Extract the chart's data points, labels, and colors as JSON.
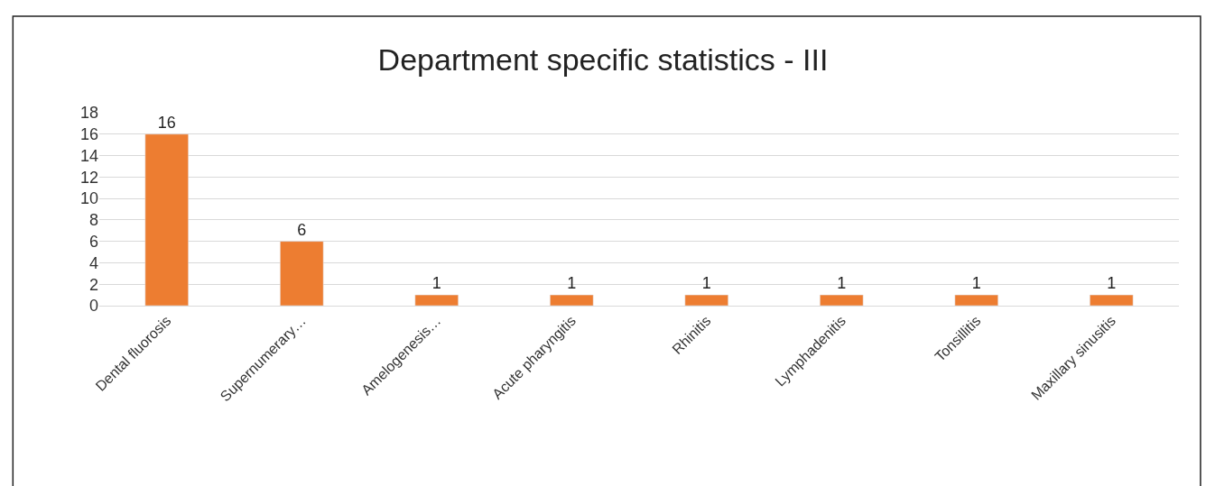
{
  "chart_data": {
    "type": "bar",
    "title": "Department specific statistics - III",
    "categories": [
      "Dental fluorosis",
      "Supernumerary…",
      "Amelogenesis…",
      "Acute pharyngitis",
      "Rhinitis",
      "Lymphadenitis",
      "Tonsillitis",
      "Maxillary sinusitis"
    ],
    "values": [
      16,
      6,
      1,
      1,
      1,
      1,
      1,
      1
    ],
    "color": "#ed7d31",
    "ylim": [
      0,
      18
    ],
    "yticks": [
      0,
      2,
      4,
      6,
      8,
      10,
      12,
      14,
      16,
      18
    ],
    "grid": "y",
    "data_labels": true
  }
}
